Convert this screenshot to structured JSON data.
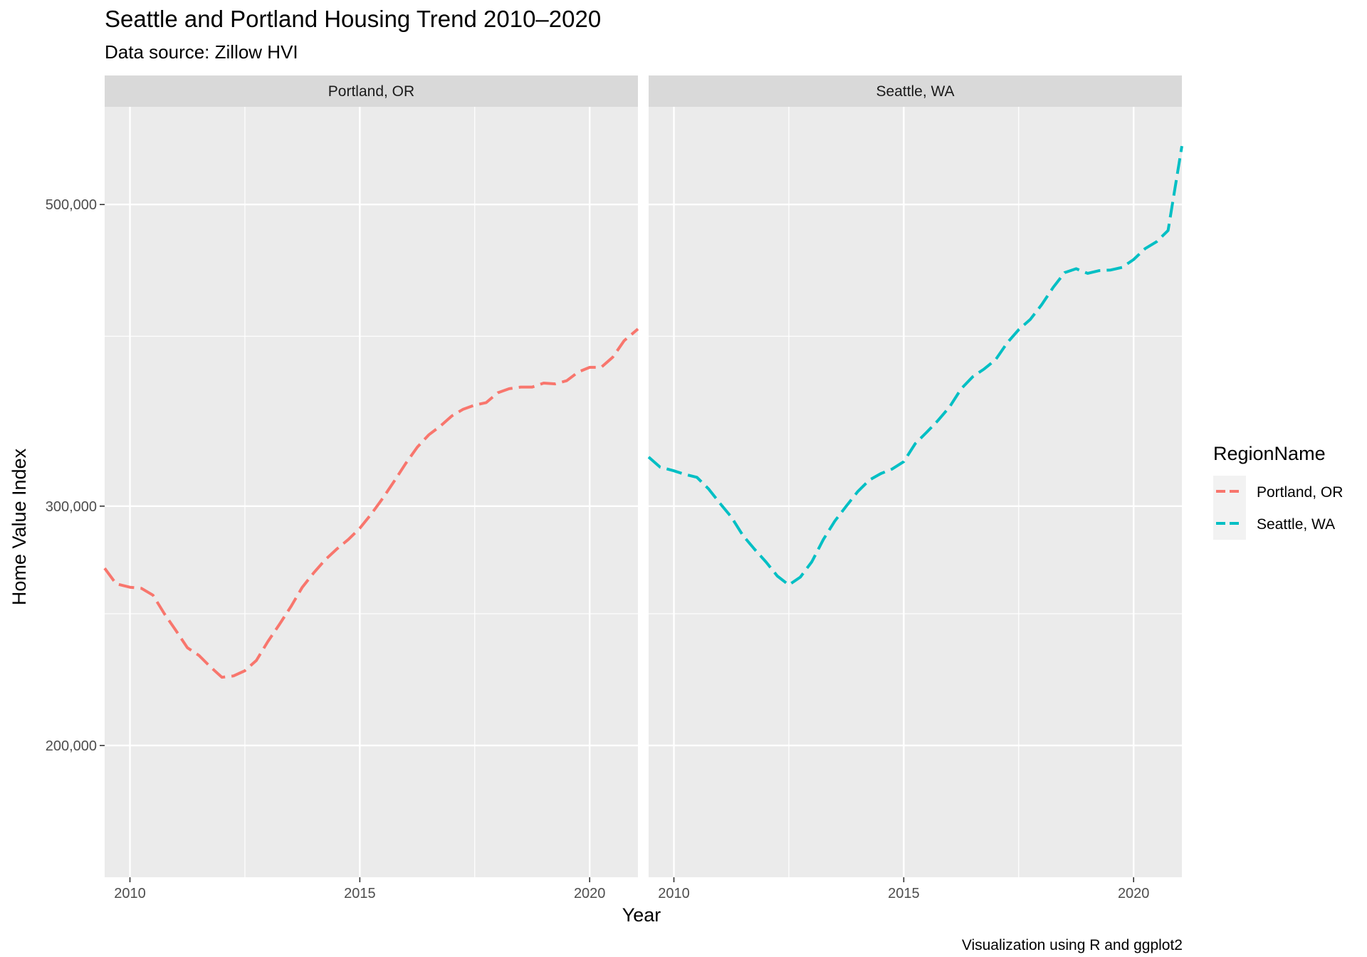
{
  "chart_data": {
    "type": "line",
    "title": "Seattle and Portland Housing Trend 2010–2020",
    "subtitle": "Data source: Zillow HVI",
    "caption": "Visualization using R and ggplot2",
    "xlabel": "Year",
    "ylabel": "Home Value Index",
    "xlim": [
      2009.45,
      2021.05
    ],
    "ylim": [
      160000,
      590000
    ],
    "x_ticks": [
      2010,
      2015,
      2020
    ],
    "x_tick_labels": [
      "2010",
      "2015",
      "2020"
    ],
    "y_ticks": [
      200000,
      300000,
      500000
    ],
    "y_tick_labels": [
      "200,000",
      "300,000",
      "500,000"
    ],
    "y_minor_gridlines": [
      250000,
      400000
    ],
    "facets": [
      "Portland, OR",
      "Seattle, WA"
    ],
    "grid": true,
    "legend": {
      "title": "RegionName",
      "placement": "right",
      "entries": [
        "Portland, OR",
        "Seattle, WA"
      ]
    },
    "series": [
      {
        "name": "Portland, OR",
        "facet": "Portland, OR",
        "color": "#F8766D",
        "linestyle": "dashed",
        "x": [
          2009.45,
          2009.7,
          2010.0,
          2010.25,
          2010.5,
          2010.75,
          2011.0,
          2011.25,
          2011.5,
          2011.75,
          2012.0,
          2012.25,
          2012.5,
          2012.75,
          2013.0,
          2013.25,
          2013.5,
          2013.75,
          2014.0,
          2014.25,
          2014.5,
          2014.75,
          2015.0,
          2015.25,
          2015.5,
          2015.75,
          2016.0,
          2016.25,
          2016.5,
          2016.75,
          2017.0,
          2017.25,
          2017.5,
          2017.75,
          2018.0,
          2018.25,
          2018.5,
          2018.75,
          2019.0,
          2019.25,
          2019.5,
          2019.75,
          2020.0,
          2020.25,
          2020.5,
          2020.75,
          2021.05
        ],
        "y": [
          270000,
          263000,
          261500,
          261000,
          258000,
          250000,
          243000,
          236000,
          233000,
          228500,
          224500,
          225000,
          227000,
          231000,
          238500,
          245500,
          253000,
          261500,
          268000,
          274000,
          279000,
          283500,
          289000,
          296000,
          304000,
          313000,
          322500,
          331500,
          338500,
          343500,
          349500,
          353500,
          356000,
          357500,
          363500,
          366000,
          367000,
          367000,
          369500,
          369000,
          371000,
          376500,
          379500,
          379500,
          386000,
          397000,
          405000
        ]
      },
      {
        "name": "Seattle, WA",
        "facet": "Seattle, WA",
        "color": "#00BFC4",
        "linestyle": "dashed",
        "x": [
          2009.45,
          2009.7,
          2010.0,
          2010.25,
          2010.5,
          2010.75,
          2011.0,
          2011.25,
          2011.5,
          2011.75,
          2012.0,
          2012.25,
          2012.5,
          2012.75,
          2013.0,
          2013.25,
          2013.5,
          2013.75,
          2014.0,
          2014.25,
          2014.5,
          2014.75,
          2015.0,
          2015.25,
          2015.5,
          2015.75,
          2016.0,
          2016.25,
          2016.5,
          2016.75,
          2017.0,
          2017.25,
          2017.5,
          2017.75,
          2018.0,
          2018.25,
          2018.5,
          2018.75,
          2019.0,
          2019.25,
          2019.5,
          2019.75,
          2020.0,
          2020.25,
          2020.5,
          2020.75,
          2021.05
        ],
        "y": [
          326000,
          320500,
          318500,
          316500,
          315000,
          309000,
          301500,
          294500,
          285500,
          279000,
          273000,
          266500,
          262500,
          266000,
          273000,
          283500,
          292500,
          300000,
          307500,
          313500,
          317000,
          319500,
          323500,
          333500,
          340000,
          347000,
          355000,
          366000,
          373500,
          378500,
          384500,
          395500,
          404500,
          411500,
          422000,
          434500,
          445500,
          448500,
          445000,
          447000,
          447500,
          449500,
          455500,
          464000,
          469500,
          478500,
          552000
        ]
      }
    ]
  }
}
